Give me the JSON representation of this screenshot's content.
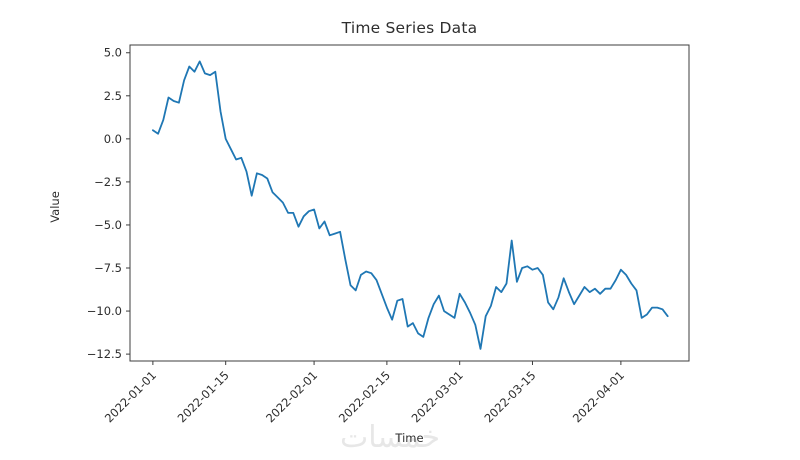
{
  "figure": {
    "background_color": "#ffffff"
  },
  "watermark": {
    "text": "خمسات",
    "color": "#e7e7e7"
  },
  "chart_data": {
    "type": "line",
    "title": "Time Series Data",
    "xlabel": "Time",
    "ylabel": "Value",
    "grid": false,
    "legend": "none",
    "line_color": "#1f77b4",
    "line_width": 1.8,
    "axis_color": "#3c3c3c",
    "tick_text_color": "#2e2e2e",
    "start_date": "2022-01-01",
    "end_date": "2022-04-10",
    "frequency": "daily",
    "x_tick_labels": [
      "2022-01-01",
      "2022-01-15",
      "2022-02-01",
      "2022-02-15",
      "2022-03-01",
      "2022-03-15",
      "2022-04-01"
    ],
    "x_tick_day_index": [
      0,
      14,
      31,
      45,
      59,
      73,
      90
    ],
    "x_tick_rotation_deg": 45,
    "y_ticks": [
      5.0,
      2.5,
      0.0,
      -2.5,
      -5.0,
      -7.5,
      -10.0,
      -12.5
    ],
    "ylim": [
      -12.9,
      5.45
    ],
    "xlim_days": [
      -4.4,
      103.1
    ],
    "values": [
      0.5,
      0.3,
      1.1,
      2.4,
      2.2,
      2.1,
      3.4,
      4.2,
      3.9,
      4.5,
      3.8,
      3.7,
      3.9,
      1.6,
      0.0,
      -0.6,
      -1.2,
      -1.1,
      -1.9,
      -3.3,
      -2.0,
      -2.1,
      -2.3,
      -3.1,
      -3.4,
      -3.7,
      -4.3,
      -4.3,
      -5.1,
      -4.5,
      -4.2,
      -4.1,
      -5.2,
      -4.8,
      -5.6,
      -5.5,
      -5.4,
      -7.0,
      -8.5,
      -8.8,
      -7.9,
      -7.7,
      -7.8,
      -8.2,
      -9.0,
      -9.8,
      -10.5,
      -9.4,
      -9.3,
      -10.9,
      -10.7,
      -11.3,
      -11.5,
      -10.4,
      -9.6,
      -9.1,
      -10.0,
      -10.2,
      -10.4,
      -9.0,
      -9.5,
      -10.1,
      -10.8,
      -12.2,
      -10.3,
      -9.7,
      -8.6,
      -8.9,
      -8.4,
      -5.9,
      -8.3,
      -7.5,
      -7.4,
      -7.6,
      -7.5,
      -7.9,
      -9.5,
      -9.9,
      -9.2,
      -8.1,
      -8.9,
      -9.6,
      -9.1,
      -8.6,
      -8.9,
      -8.7,
      -9.0,
      -8.7,
      -8.7,
      -8.2,
      -7.6,
      -7.9,
      -8.4,
      -8.8,
      -10.4,
      -10.2,
      -9.8,
      -9.8,
      -9.9,
      -10.3
    ]
  }
}
